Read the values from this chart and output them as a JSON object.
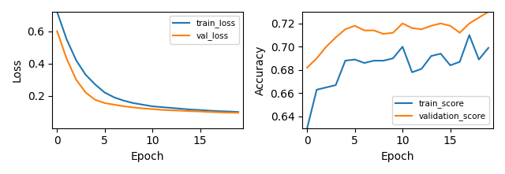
{
  "train_loss": [
    0.72,
    0.55,
    0.42,
    0.33,
    0.27,
    0.22,
    0.19,
    0.17,
    0.155,
    0.145,
    0.135,
    0.13,
    0.125,
    0.12,
    0.115,
    0.112,
    0.108,
    0.105,
    0.103,
    0.1
  ],
  "val_loss": [
    0.6,
    0.43,
    0.3,
    0.22,
    0.175,
    0.155,
    0.145,
    0.135,
    0.128,
    0.122,
    0.118,
    0.113,
    0.11,
    0.108,
    0.105,
    0.103,
    0.1,
    0.098,
    0.096,
    0.095
  ],
  "train_score": [
    0.63,
    0.663,
    0.665,
    0.667,
    0.688,
    0.689,
    0.686,
    0.688,
    0.688,
    0.69,
    0.7,
    0.678,
    0.681,
    0.692,
    0.694,
    0.684,
    0.687,
    0.71,
    0.689,
    0.699
  ],
  "val_score": [
    0.682,
    0.69,
    0.7,
    0.708,
    0.715,
    0.718,
    0.714,
    0.714,
    0.711,
    0.712,
    0.72,
    0.716,
    0.715,
    0.718,
    0.72,
    0.718,
    0.712,
    0.72,
    0.725,
    0.73
  ],
  "loss_xlabel": "Epoch",
  "loss_ylabel": "Loss",
  "acc_xlabel": "Epoch",
  "acc_ylabel": "Accuracy",
  "train_loss_label": "train_loss",
  "val_loss_label": "val_loss",
  "train_score_label": "train_score",
  "val_score_label": "validation_score",
  "blue_color": "#1f77b4",
  "orange_color": "#ff7f0e",
  "loss_ylim": [
    0.0,
    0.72
  ],
  "acc_ylim": [
    0.63,
    0.73
  ],
  "loss_yticks": [
    0.2,
    0.4,
    0.6
  ],
  "acc_yticks": [
    0.64,
    0.66,
    0.68,
    0.7,
    0.72
  ],
  "xlim": [
    -0.5,
    19.5
  ],
  "xticks": [
    0,
    5,
    10,
    15
  ]
}
